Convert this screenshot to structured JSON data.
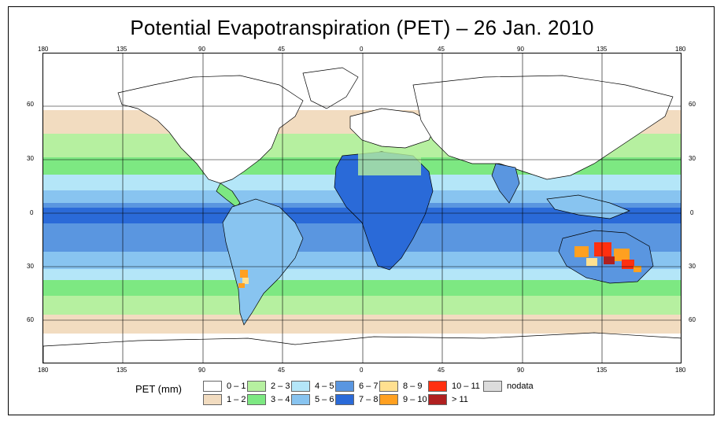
{
  "title": "Potential Evapotranspiration (PET) – 26 Jan. 2010",
  "legend": {
    "title": "PET (mm)",
    "items": [
      {
        "label": "0 – 1",
        "color": "#ffffff"
      },
      {
        "label": "1 – 2",
        "color": "#f2dcc0"
      },
      {
        "label": "2 – 3",
        "color": "#b6f0a0"
      },
      {
        "label": "3 – 4",
        "color": "#7de882"
      },
      {
        "label": "4 – 5",
        "color": "#b4e6f8"
      },
      {
        "label": "5 – 6",
        "color": "#88c4f0"
      },
      {
        "label": "6 – 7",
        "color": "#5a96e0"
      },
      {
        "label": "7 – 8",
        "color": "#2a6ad8"
      },
      {
        "label": "8 – 9",
        "color": "#ffe090"
      },
      {
        "label": "9 – 10",
        "color": "#ffa020"
      },
      {
        "label": "10 – 11",
        "color": "#ff3010"
      },
      {
        "label": "> 11",
        "color": "#b02020"
      },
      {
        "label": "nodata",
        "color": "#dcdcdc"
      }
    ]
  },
  "axes": {
    "x_top": [
      "180",
      "135",
      "90",
      "45",
      "0",
      "45",
      "90",
      "135",
      "180"
    ],
    "x_bottom": [
      "180",
      "135",
      "90",
      "45",
      "0",
      "45",
      "90",
      "135",
      "180"
    ],
    "y_left": [
      "60",
      "30",
      "0",
      "30",
      "60"
    ],
    "y_right": [
      "60",
      "30",
      "0",
      "30",
      "60"
    ]
  },
  "bands": {
    "land_outline_color": "#000000",
    "grid_color": "#000000"
  }
}
